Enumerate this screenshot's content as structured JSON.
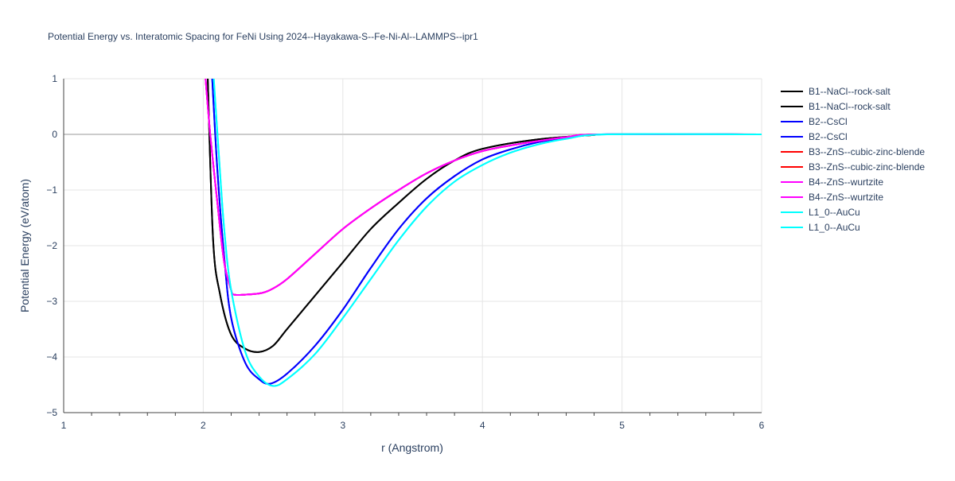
{
  "chart_data": {
    "type": "line",
    "title": "Potential Energy vs. Interatomic Spacing for FeNi Using 2024--Hayakawa-S--Fe-Ni-Al--LAMMPS--ipr1",
    "xlabel": "r (Angstrom)",
    "ylabel": "Potential Energy (eV/atom)",
    "xlim": [
      1,
      6
    ],
    "ylim": [
      -5,
      1
    ],
    "xticks": [
      1,
      2,
      3,
      4,
      5,
      6
    ],
    "yticks": [
      1,
      0,
      -1,
      -2,
      -3,
      -4,
      -5
    ],
    "ytick_labels": [
      "1",
      "0",
      "−1",
      "−2",
      "−3",
      "−4",
      "−5"
    ],
    "grid": true,
    "legend": "right",
    "series": [
      {
        "name": "B1--NaCl--rock-salt",
        "color": "#000000",
        "x": [
          2.03,
          2.07,
          2.12,
          2.2,
          2.3,
          2.4,
          2.5,
          2.6,
          2.8,
          3.0,
          3.2,
          3.4,
          3.6,
          3.8,
          4.0,
          4.4,
          4.8,
          4.9,
          6
        ],
        "y": [
          1.2,
          -1.87,
          -2.87,
          -3.6,
          -3.85,
          -3.91,
          -3.8,
          -3.5,
          -2.9,
          -2.3,
          -1.7,
          -1.23,
          -0.8,
          -0.47,
          -0.26,
          -0.09,
          -0.01,
          0,
          0
        ]
      },
      {
        "name": "B1--NaCl--rock-salt",
        "color": "#000000",
        "x": [
          2.03,
          2.07,
          2.12,
          2.2,
          2.3,
          2.4,
          2.5,
          2.6,
          2.8,
          3.0,
          3.2,
          3.4,
          3.6,
          3.8,
          4.0,
          4.4,
          4.8,
          4.9,
          6
        ],
        "y": [
          1.2,
          -1.87,
          -2.87,
          -3.6,
          -3.85,
          -3.91,
          -3.8,
          -3.5,
          -2.9,
          -2.3,
          -1.7,
          -1.23,
          -0.8,
          -0.47,
          -0.26,
          -0.09,
          -0.01,
          0,
          0
        ]
      },
      {
        "name": "B2--CsCl",
        "color": "#0000ff",
        "x": [
          2.06,
          2.1,
          2.15,
          2.2,
          2.3,
          2.4,
          2.48,
          2.6,
          2.8,
          3.0,
          3.2,
          3.4,
          3.6,
          3.8,
          4.0,
          4.2,
          4.4,
          4.6,
          4.85,
          6
        ],
        "y": [
          1.2,
          -0.6,
          -2.2,
          -3.3,
          -4.1,
          -4.4,
          -4.48,
          -4.3,
          -3.8,
          -3.15,
          -2.4,
          -1.7,
          -1.15,
          -0.75,
          -0.45,
          -0.27,
          -0.14,
          -0.06,
          0,
          0
        ]
      },
      {
        "name": "B2--CsCl",
        "color": "#0000ff",
        "x": [
          2.06,
          2.1,
          2.15,
          2.2,
          2.3,
          2.4,
          2.48,
          2.6,
          2.8,
          3.0,
          3.2,
          3.4,
          3.6,
          3.8,
          4.0,
          4.2,
          4.4,
          4.6,
          4.85,
          6
        ],
        "y": [
          1.2,
          -0.6,
          -2.2,
          -3.3,
          -4.1,
          -4.4,
          -4.48,
          -4.3,
          -3.8,
          -3.15,
          -2.4,
          -1.7,
          -1.15,
          -0.75,
          -0.45,
          -0.27,
          -0.14,
          -0.06,
          0,
          0
        ]
      },
      {
        "name": "B3--ZnS--cubic-zinc-blende",
        "color": "#ff0000",
        "x": [
          2.01,
          2.05,
          2.1,
          2.15,
          2.2,
          2.22,
          2.3,
          2.42,
          2.5,
          2.6,
          2.8,
          3.0,
          3.2,
          3.4,
          3.6,
          3.8,
          4.0,
          4.2,
          4.4,
          4.6,
          4.85,
          6
        ],
        "y": [
          1.2,
          0,
          -1.2,
          -2.3,
          -2.8,
          -2.88,
          -2.88,
          -2.85,
          -2.77,
          -2.6,
          -2.15,
          -1.7,
          -1.33,
          -1.0,
          -0.7,
          -0.47,
          -0.3,
          -0.2,
          -0.12,
          -0.05,
          0,
          0
        ]
      },
      {
        "name": "B3--ZnS--cubic-zinc-blende",
        "color": "#ff0000",
        "x": [
          2.01,
          2.05,
          2.1,
          2.15,
          2.2,
          2.22,
          2.3,
          2.42,
          2.5,
          2.6,
          2.8,
          3.0,
          3.2,
          3.4,
          3.6,
          3.8,
          4.0,
          4.2,
          4.4,
          4.6,
          4.85,
          6
        ],
        "y": [
          1.2,
          0,
          -1.2,
          -2.3,
          -2.8,
          -2.88,
          -2.88,
          -2.85,
          -2.77,
          -2.6,
          -2.15,
          -1.7,
          -1.33,
          -1.0,
          -0.7,
          -0.47,
          -0.3,
          -0.2,
          -0.12,
          -0.05,
          0,
          0
        ]
      },
      {
        "name": "B4--ZnS--wurtzite",
        "color": "#ff00ff",
        "x": [
          2.01,
          2.05,
          2.1,
          2.15,
          2.2,
          2.22,
          2.3,
          2.42,
          2.5,
          2.6,
          2.8,
          3.0,
          3.2,
          3.4,
          3.6,
          3.8,
          4.0,
          4.2,
          4.4,
          4.6,
          4.85,
          6
        ],
        "y": [
          1.2,
          0,
          -1.2,
          -2.3,
          -2.8,
          -2.88,
          -2.88,
          -2.85,
          -2.77,
          -2.6,
          -2.15,
          -1.7,
          -1.33,
          -1.0,
          -0.7,
          -0.47,
          -0.3,
          -0.2,
          -0.12,
          -0.05,
          0,
          0
        ]
      },
      {
        "name": "B4--ZnS--wurtzite",
        "color": "#ff00ff",
        "x": [
          2.01,
          2.05,
          2.1,
          2.15,
          2.2,
          2.22,
          2.3,
          2.42,
          2.5,
          2.6,
          2.8,
          3.0,
          3.2,
          3.4,
          3.6,
          3.8,
          4.0,
          4.2,
          4.4,
          4.6,
          4.85,
          6
        ],
        "y": [
          1.2,
          0,
          -1.2,
          -2.3,
          -2.8,
          -2.88,
          -2.88,
          -2.85,
          -2.77,
          -2.6,
          -2.15,
          -1.7,
          -1.33,
          -1.0,
          -0.7,
          -0.47,
          -0.3,
          -0.2,
          -0.12,
          -0.05,
          0,
          0
        ]
      },
      {
        "name": "L1_0--AuCu",
        "color": "#00ffff",
        "x": [
          2.07,
          2.11,
          2.15,
          2.2,
          2.3,
          2.4,
          2.5,
          2.6,
          2.8,
          3.0,
          3.2,
          3.4,
          3.6,
          3.8,
          4.0,
          4.2,
          4.4,
          4.6,
          4.9,
          6
        ],
        "y": [
          1.2,
          -0.3,
          -1.7,
          -2.8,
          -3.9,
          -4.35,
          -4.52,
          -4.4,
          -3.95,
          -3.3,
          -2.6,
          -1.9,
          -1.3,
          -0.85,
          -0.55,
          -0.33,
          -0.18,
          -0.08,
          0,
          0
        ]
      },
      {
        "name": "L1_0--AuCu",
        "color": "#00ffff",
        "x": [
          2.07,
          2.11,
          2.15,
          2.2,
          2.3,
          2.4,
          2.5,
          2.6,
          2.8,
          3.0,
          3.2,
          3.4,
          3.6,
          3.8,
          4.0,
          4.2,
          4.4,
          4.6,
          4.9,
          6
        ],
        "y": [
          1.2,
          -0.3,
          -1.7,
          -2.8,
          -3.9,
          -4.35,
          -4.52,
          -4.4,
          -3.95,
          -3.3,
          -2.6,
          -1.9,
          -1.3,
          -0.85,
          -0.55,
          -0.33,
          -0.18,
          -0.08,
          0,
          0
        ]
      }
    ]
  }
}
